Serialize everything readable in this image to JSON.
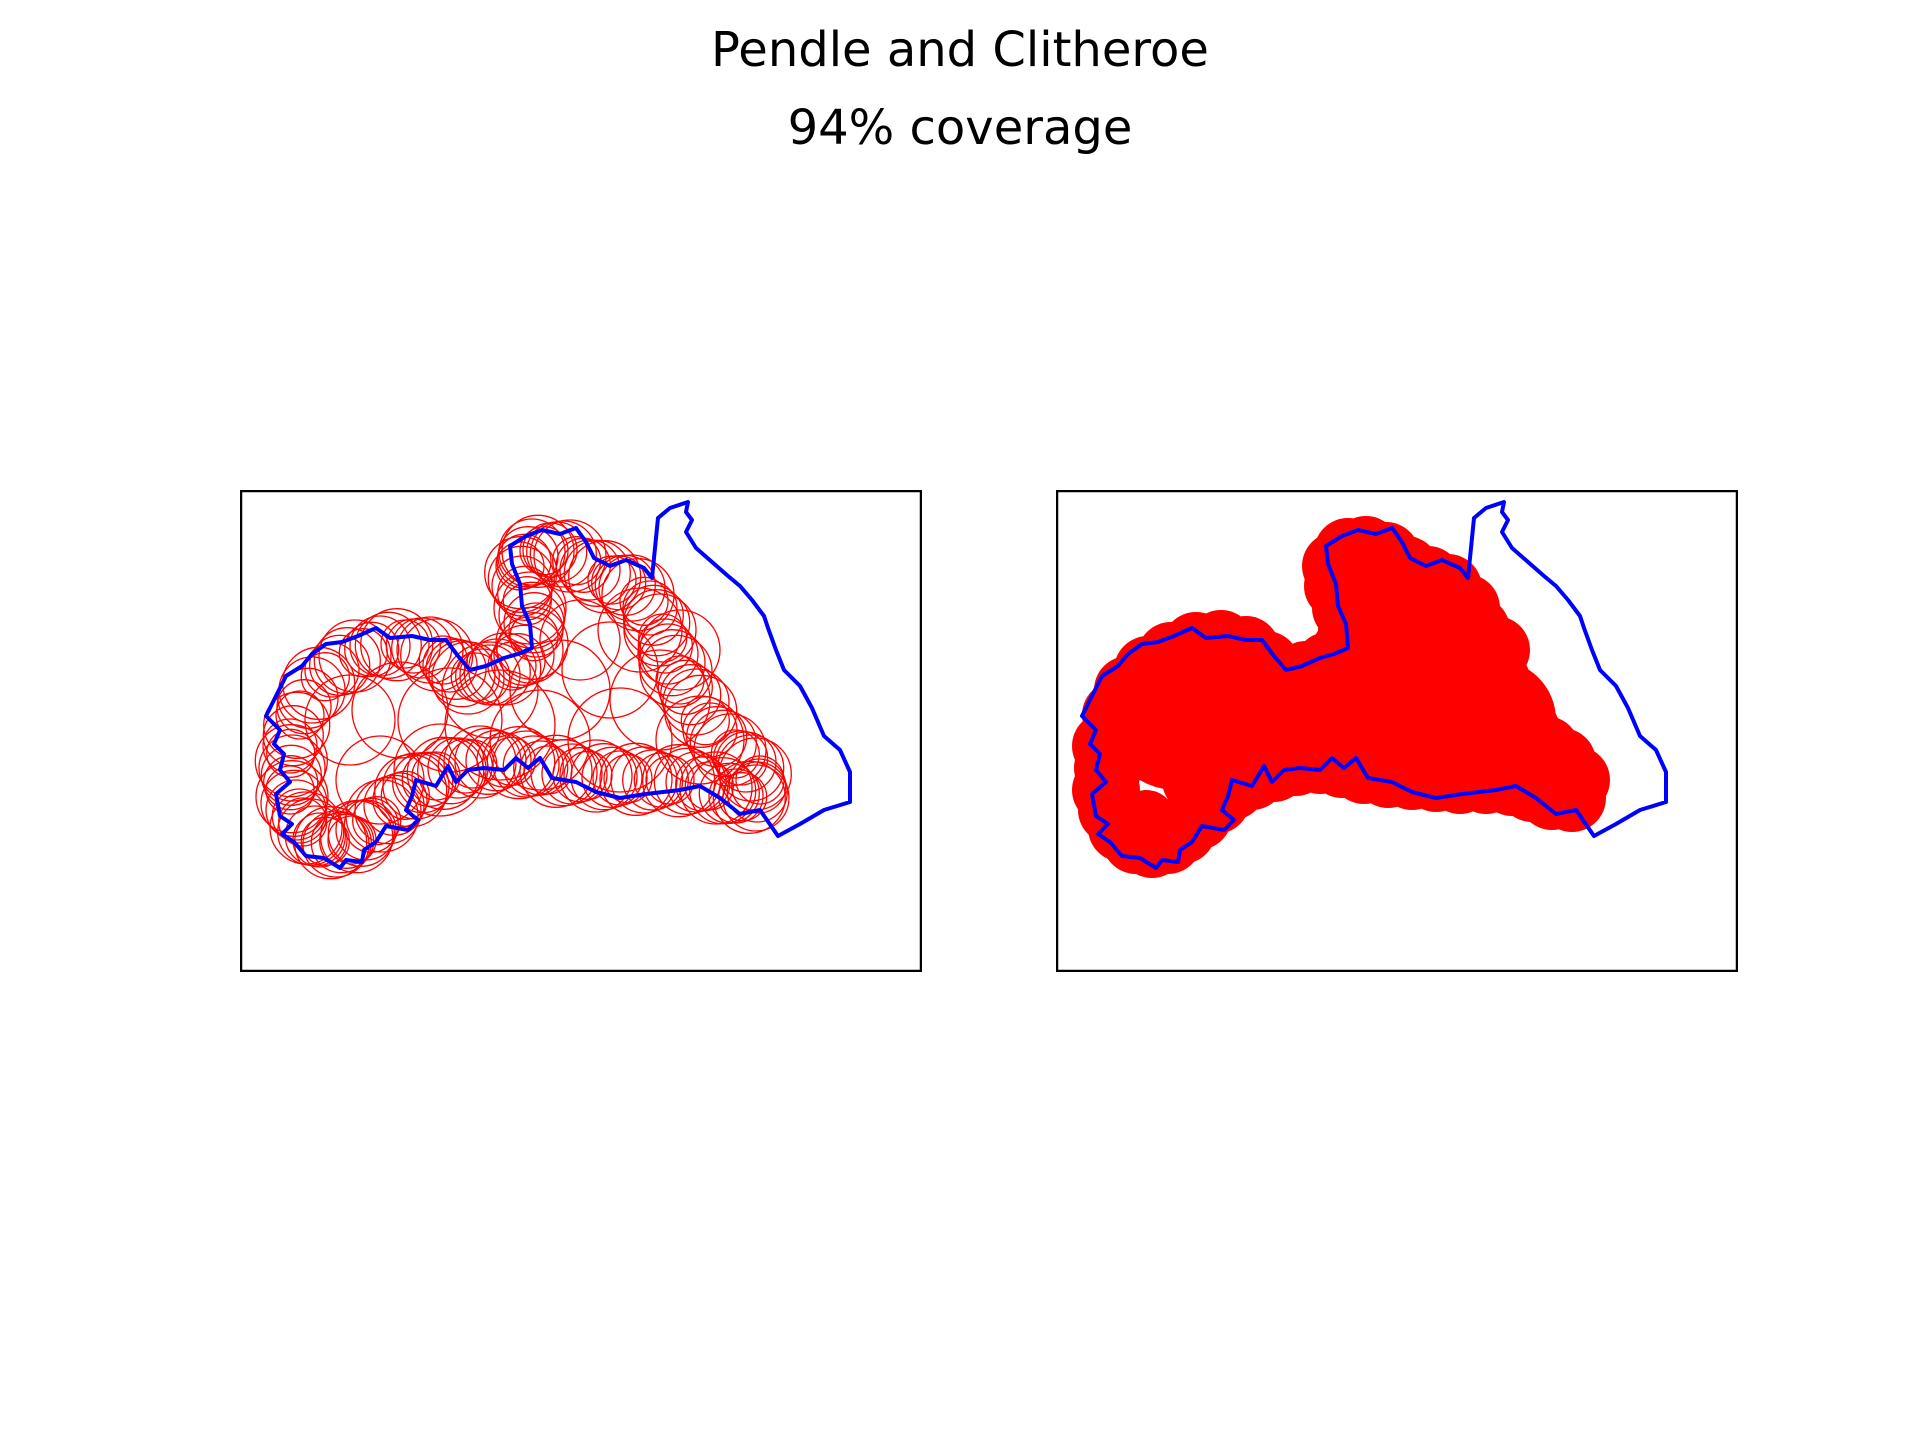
{
  "figure": {
    "title": "Pendle and Clitheroe",
    "subtitle": "94% coverage"
  },
  "panels": [
    {
      "id": "left",
      "style": "circle-outlines"
    },
    {
      "id": "right",
      "style": "filled-coverage"
    }
  ],
  "colors": {
    "boundary": "#0000ff",
    "coverage": "#ff0000",
    "frame": "#000000",
    "background": "#ffffff"
  }
}
